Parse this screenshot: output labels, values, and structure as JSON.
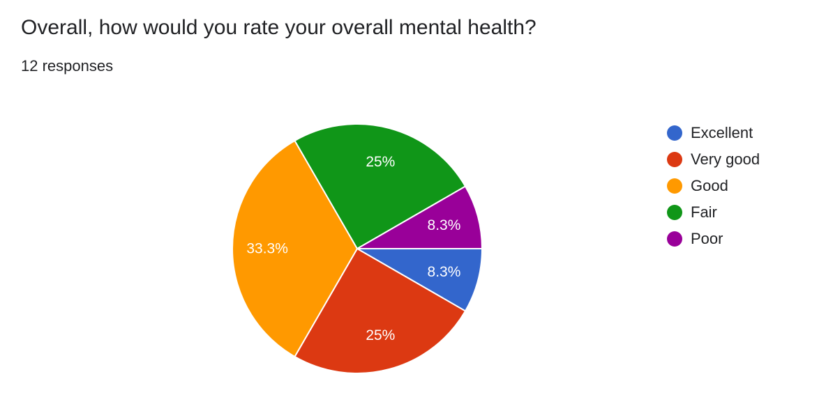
{
  "header": {
    "question": "Overall, how would you rate your overall mental health?",
    "responses": "12 responses"
  },
  "chart_data": {
    "type": "pie",
    "title": "Overall, how would you rate your overall mental health?",
    "categories": [
      "Excellent",
      "Very good",
      "Good",
      "Fair",
      "Poor"
    ],
    "values": [
      1,
      3,
      4,
      3,
      1
    ],
    "percent_labels": [
      "8.3%",
      "25%",
      "33.3%",
      "25%",
      "8.3%"
    ],
    "colors": [
      "#3366cc",
      "#dc3912",
      "#ff9900",
      "#109618",
      "#990099"
    ],
    "legend_position": "right",
    "start": "3 o'clock",
    "direction": "clockwise"
  }
}
